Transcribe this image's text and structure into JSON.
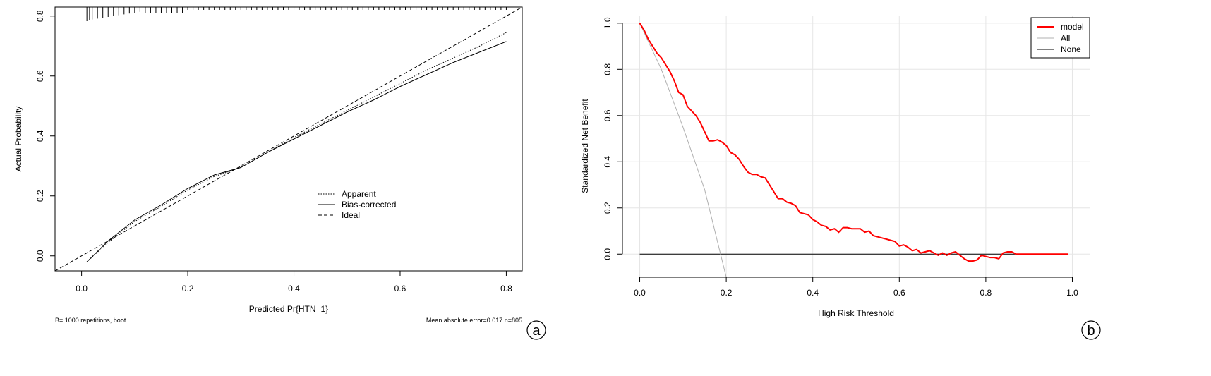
{
  "chart_data": [
    {
      "panel_label": "a",
      "type": "line",
      "xlabel": "Predicted Pr{HTN=1}",
      "ylabel": "Actual Probability",
      "xlim": [
        -0.05,
        0.83
      ],
      "ylim": [
        -0.05,
        0.83
      ],
      "x_ticks": [
        "0.0",
        "0.2",
        "0.4",
        "0.6",
        "0.8"
      ],
      "y_ticks": [
        "0.0",
        "0.2",
        "0.4",
        "0.6",
        "0.8"
      ],
      "grid": false,
      "legend": "center-right",
      "footnote_left": "B= 1000 repetitions, boot",
      "footnote_right": "Mean absolute error=0.017 n=805",
      "rug_x": [
        0.01,
        0.015,
        0.02,
        0.03,
        0.04,
        0.05,
        0.06,
        0.07,
        0.08,
        0.09,
        0.1,
        0.11,
        0.12,
        0.13,
        0.14,
        0.15,
        0.16,
        0.17,
        0.18,
        0.19,
        0.2,
        0.21,
        0.22,
        0.23,
        0.24,
        0.25,
        0.26,
        0.27,
        0.28,
        0.29,
        0.3,
        0.31,
        0.32,
        0.33,
        0.34,
        0.35,
        0.36,
        0.37,
        0.38,
        0.39,
        0.4,
        0.41,
        0.42,
        0.43,
        0.44,
        0.45,
        0.46,
        0.47,
        0.48,
        0.49,
        0.5,
        0.51,
        0.52,
        0.53,
        0.54,
        0.55,
        0.56,
        0.57,
        0.58,
        0.59,
        0.6,
        0.61,
        0.62,
        0.63,
        0.64,
        0.65,
        0.66,
        0.67,
        0.68,
        0.69,
        0.7,
        0.71,
        0.72,
        0.73,
        0.74,
        0.75,
        0.76,
        0.77,
        0.78,
        0.79,
        0.8
      ],
      "series": [
        {
          "name": "Apparent",
          "style": "dotted",
          "x": [
            0.01,
            0.05,
            0.1,
            0.15,
            0.2,
            0.25,
            0.3,
            0.35,
            0.4,
            0.45,
            0.5,
            0.55,
            0.6,
            0.65,
            0.7,
            0.75,
            0.8
          ],
          "y": [
            -0.02,
            0.045,
            0.115,
            0.165,
            0.22,
            0.265,
            0.295,
            0.345,
            0.395,
            0.44,
            0.485,
            0.53,
            0.575,
            0.62,
            0.66,
            0.7,
            0.745
          ]
        },
        {
          "name": "Bias-corrected",
          "style": "solid",
          "x": [
            0.01,
            0.05,
            0.1,
            0.15,
            0.2,
            0.25,
            0.3,
            0.35,
            0.4,
            0.45,
            0.5,
            0.55,
            0.6,
            0.65,
            0.7,
            0.75,
            0.8
          ],
          "y": [
            -0.02,
            0.05,
            0.12,
            0.17,
            0.225,
            0.27,
            0.295,
            0.345,
            0.39,
            0.435,
            0.48,
            0.52,
            0.565,
            0.605,
            0.645,
            0.68,
            0.715
          ]
        },
        {
          "name": "Ideal",
          "style": "dashed",
          "x": [
            -0.05,
            0.83
          ],
          "y": [
            -0.05,
            0.83
          ]
        }
      ]
    },
    {
      "panel_label": "b",
      "type": "line",
      "xlabel": "High Risk Threshold",
      "ylabel": "Standardized Net Benefit",
      "xlim": [
        -0.04,
        1.04
      ],
      "ylim": [
        -0.1,
        1.03
      ],
      "x_ticks": [
        "0.0",
        "0.2",
        "0.4",
        "0.6",
        "0.8",
        "1.0"
      ],
      "y_ticks": [
        "0.0",
        "0.2",
        "0.4",
        "0.6",
        "0.8",
        "1.0"
      ],
      "grid": true,
      "legend": "top-right",
      "series": [
        {
          "name": "model",
          "color": "#ff0000",
          "x": [
            0.0,
            0.01,
            0.02,
            0.03,
            0.04,
            0.05,
            0.06,
            0.07,
            0.08,
            0.09,
            0.1,
            0.11,
            0.12,
            0.13,
            0.14,
            0.15,
            0.16,
            0.17,
            0.18,
            0.19,
            0.2,
            0.21,
            0.22,
            0.23,
            0.24,
            0.25,
            0.26,
            0.27,
            0.28,
            0.29,
            0.3,
            0.31,
            0.32,
            0.33,
            0.34,
            0.35,
            0.36,
            0.37,
            0.38,
            0.39,
            0.4,
            0.41,
            0.42,
            0.43,
            0.44,
            0.45,
            0.46,
            0.47,
            0.48,
            0.49,
            0.5,
            0.51,
            0.52,
            0.53,
            0.54,
            0.55,
            0.56,
            0.57,
            0.58,
            0.59,
            0.6,
            0.61,
            0.62,
            0.63,
            0.64,
            0.65,
            0.66,
            0.67,
            0.68,
            0.69,
            0.7,
            0.71,
            0.72,
            0.73,
            0.74,
            0.75,
            0.76,
            0.77,
            0.78,
            0.79,
            0.8,
            0.81,
            0.82,
            0.83,
            0.84,
            0.85,
            0.86,
            0.87,
            0.88,
            0.9,
            0.95,
            0.99
          ],
          "y": [
            1.0,
            0.97,
            0.93,
            0.9,
            0.87,
            0.85,
            0.82,
            0.79,
            0.75,
            0.7,
            0.69,
            0.64,
            0.62,
            0.6,
            0.57,
            0.53,
            0.49,
            0.49,
            0.495,
            0.485,
            0.47,
            0.44,
            0.43,
            0.41,
            0.38,
            0.355,
            0.345,
            0.345,
            0.335,
            0.33,
            0.3,
            0.27,
            0.24,
            0.24,
            0.225,
            0.22,
            0.21,
            0.18,
            0.175,
            0.17,
            0.15,
            0.14,
            0.125,
            0.12,
            0.105,
            0.11,
            0.095,
            0.115,
            0.115,
            0.11,
            0.11,
            0.11,
            0.095,
            0.1,
            0.08,
            0.075,
            0.07,
            0.065,
            0.06,
            0.055,
            0.035,
            0.04,
            0.03,
            0.015,
            0.02,
            0.005,
            0.01,
            0.015,
            0.005,
            -0.005,
            0.005,
            -0.005,
            0.005,
            0.01,
            -0.005,
            -0.02,
            -0.03,
            -0.03,
            -0.025,
            -0.005,
            -0.01,
            -0.015,
            -0.015,
            -0.02,
            0.005,
            0.01,
            0.01,
            0.0,
            0.0,
            0.0,
            0.0,
            0.0
          ]
        },
        {
          "name": "All",
          "color": "#b0b0b0",
          "x": [
            0.0,
            0.05,
            0.1,
            0.15,
            0.2
          ],
          "y": [
            1.0,
            0.8,
            0.55,
            0.28,
            -0.1
          ]
        },
        {
          "name": "None",
          "color": "#000000",
          "x": [
            0.0,
            0.99
          ],
          "y": [
            0.0,
            0.0
          ]
        }
      ]
    }
  ]
}
